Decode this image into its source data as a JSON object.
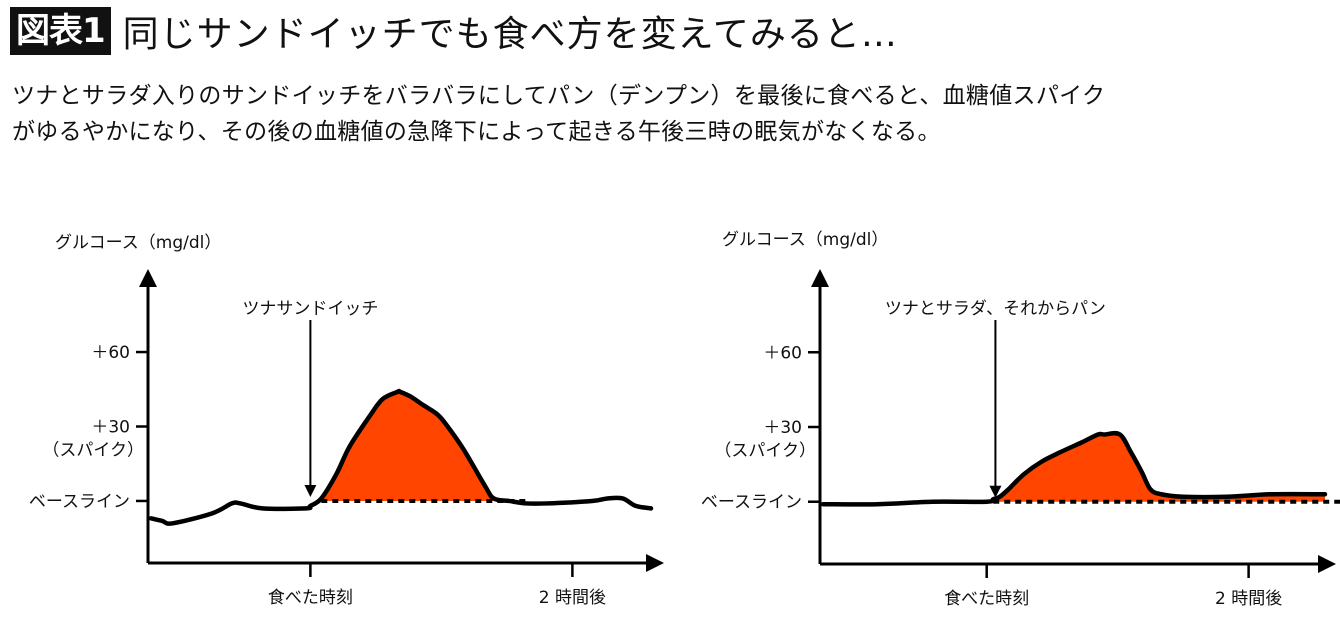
{
  "header": {
    "badge": "図表1",
    "title": "同じサンドイッチでも食べ方を変えてみると…"
  },
  "description": {
    "line1": "ツナとサラダ入りのサンドイッチをバラバラにしてパン（デンプン）を最後に食べると、血糖値スパイク",
    "line2": "がゆるやかになり、その後の血糖値の急降下によって起きる午後三時の眠気がなくなる。"
  },
  "colors": {
    "fill": "#ff4500",
    "line": "#000000"
  },
  "chart_data": [
    {
      "type": "area",
      "ylabel": "グルコース（mg/dl）",
      "y_ticks": [
        {
          "value": 60,
          "label": "＋60"
        },
        {
          "value": 30,
          "label": "＋30",
          "sublabel": "（スパイク）"
        },
        {
          "value": 0,
          "label": "ベースライン"
        }
      ],
      "x_ticks": [
        {
          "value": 0,
          "label": "食べた時刻"
        },
        {
          "value": 120,
          "label": "2 時間後"
        }
      ],
      "xlim": [
        -73,
        156
      ],
      "ylim": [
        -25,
        85
      ],
      "annotation": {
        "text": "ツナサンドイッチ",
        "x": 0
      },
      "x": [
        -73,
        -68,
        -63,
        -45,
        -36,
        -32,
        -22,
        -2,
        0,
        5,
        12,
        18,
        27,
        33,
        40,
        41,
        46,
        51,
        58,
        62,
        70,
        80,
        84,
        91,
        99,
        108,
        129,
        136,
        143,
        149,
        156
      ],
      "values": [
        -7,
        -8,
        -9,
        -5,
        -1,
        -1,
        -3,
        -3,
        -2,
        1,
        11,
        22,
        34,
        41,
        44,
        44,
        42,
        39,
        35,
        31,
        21,
        6,
        1,
        0,
        -1,
        -1,
        0,
        1,
        1,
        -2,
        -3
      ]
    },
    {
      "type": "area",
      "ylabel": "グルコース（mg/dl）",
      "y_ticks": [
        {
          "value": 60,
          "label": "＋60"
        },
        {
          "value": 30,
          "label": "＋30",
          "sublabel": "（スパイク）"
        },
        {
          "value": 0,
          "label": "ベースライン"
        }
      ],
      "x_ticks": [
        {
          "value": 0,
          "label": "食べた時刻"
        },
        {
          "value": 120,
          "label": "2 時間後"
        }
      ],
      "xlim": [
        -75,
        155
      ],
      "ylim": [
        -25,
        85
      ],
      "annotation": {
        "text": "ツナとサラダ、それからパン",
        "x": 4
      },
      "x": [
        -75,
        -50,
        -25,
        0,
        3,
        6,
        10,
        17,
        25,
        34,
        44,
        51,
        54,
        61,
        66,
        71,
        75,
        80,
        90,
        110,
        130,
        155
      ],
      "values": [
        -1,
        -1,
        0,
        0,
        1,
        2,
        5,
        11,
        16,
        20,
        24,
        27,
        27,
        27,
        20,
        12,
        5,
        3,
        2,
        2,
        3,
        3
      ]
    }
  ]
}
